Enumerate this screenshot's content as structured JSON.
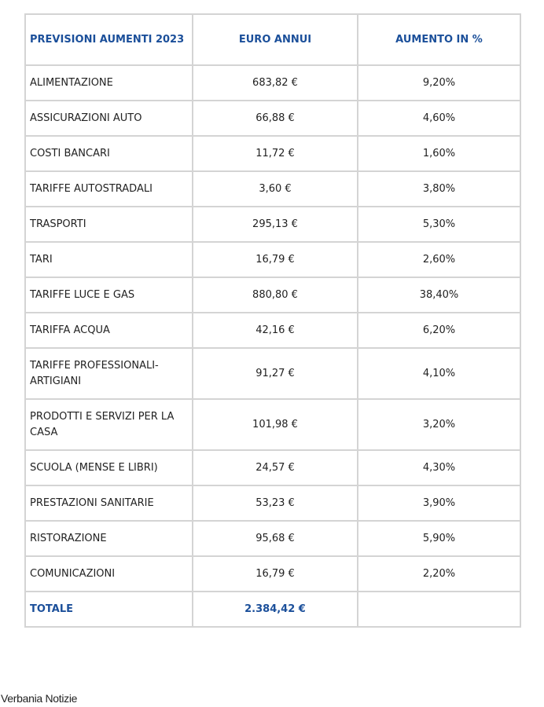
{
  "table": {
    "headers": [
      "PREVISIONI AUMENTI 2023",
      "EURO ANNUI",
      "AUMENTO IN %"
    ],
    "rows": [
      [
        "ALIMENTAZIONE",
        "683,82 €",
        "9,20%"
      ],
      [
        "ASSICURAZIONI AUTO",
        "66,88 €",
        "4,60%"
      ],
      [
        "COSTI BANCARI",
        "11,72 €",
        "1,60%"
      ],
      [
        "TARIFFE AUTOSTRADALI",
        "3,60 €",
        "3,80%"
      ],
      [
        "TRASPORTI",
        "295,13 €",
        "5,30%"
      ],
      [
        "TARI",
        "16,79 €",
        "2,60%"
      ],
      [
        "TARIFFE LUCE E GAS",
        "880,80 €",
        "38,40%"
      ],
      [
        "TARIFFA ACQUA",
        "42,16 €",
        "6,20%"
      ],
      [
        "TARIFFE PROFESSIONALI-ARTIGIANI",
        "91,27 €",
        "4,10%"
      ],
      [
        "PRODOTTI E SERVIZI PER LA CASA",
        "101,98 €",
        "3,20%"
      ],
      [
        "SCUOLA (MENSE E LIBRI)",
        "24,57 €",
        "4,30%"
      ],
      [
        "PRESTAZIONI SANITARIE",
        "53,23 €",
        "3,90%"
      ],
      [
        "RISTORAZIONE",
        "95,68 €",
        "5,90%"
      ],
      [
        "COMUNICAZIONI",
        "16,79 €",
        "2,20%"
      ]
    ],
    "total": {
      "label": "TOTALE",
      "euro": "2.384,42 €",
      "percent": ""
    }
  },
  "footer": {
    "source": "Verbania Notizie"
  },
  "colors": {
    "header_text": "#1b4f9a",
    "border": "#d4d4d4"
  }
}
